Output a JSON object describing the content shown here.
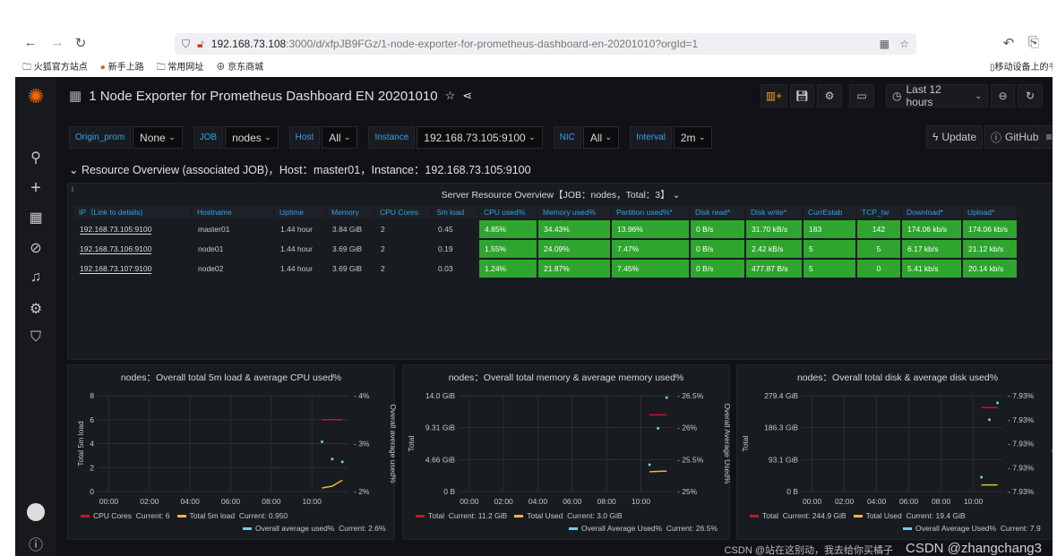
{
  "browser": {
    "url_host": "192.168.73.108",
    "url_rest": ":3000/d/xfpJB9FGz/1-node-exporter-for-prometheus-dashboard-en-20201010?orgId=1",
    "bookmarks": [
      "火狐官方站点",
      "新手上路",
      "常用网址",
      "京东商城"
    ],
    "mobile_bookmarks": "移动设备上的书签"
  },
  "header": {
    "title": "1 Node Exporter for Prometheus Dashboard EN 20201010",
    "time_range": "Last 12 hours"
  },
  "variables": [
    {
      "label": "Origin_prom",
      "value": "None"
    },
    {
      "label": "JOB",
      "value": "nodes"
    },
    {
      "label": "Host",
      "value": "All"
    },
    {
      "label": "Instance",
      "value": "192.168.73.105:9100"
    },
    {
      "label": "NIC",
      "value": "All"
    },
    {
      "label": "Interval",
      "value": "2m"
    }
  ],
  "links": {
    "update": "Update",
    "github": "GitHub"
  },
  "row_title": "Resource Overview (associated JOB)，Host：master01，Instance：192.168.73.105:9100",
  "table": {
    "title": "Server Resource Overview【JOB：nodes，Total：3】",
    "columns": [
      "IP（Link to details)",
      "Hostname",
      "Uptime",
      "Memory",
      "CPU Cores",
      "5m load",
      "CPU used%",
      "Memory used%",
      "Partition used%*",
      "Disk read*",
      "Disk write*",
      "CurrEstab",
      "TCP_tw",
      "Download*",
      "Upload*"
    ],
    "rows": [
      [
        "192.168.73.105:9100",
        "master01",
        "1.44 hour",
        "3.84 GiB",
        "2",
        "0.45",
        "4.85%",
        "34.43%",
        "13.96%",
        "0 B/s",
        "31.70 kB/s",
        "183",
        "142",
        "174.06 kb/s",
        "174.06 kb/s"
      ],
      [
        "192.168.73.106:9100",
        "node01",
        "1.44 hour",
        "3.69 GiB",
        "2",
        "0.19",
        "1.55%",
        "24.09%",
        "7.47%",
        "0 B/s",
        "2.42 kB/s",
        "5",
        "5",
        "6.17 kb/s",
        "21.12 kb/s"
      ],
      [
        "192.168.73.107:9100",
        "node02",
        "1.44 hour",
        "3.69 GiB",
        "2",
        "0.03",
        "1.24%",
        "21.87%",
        "7.45%",
        "0 B/s",
        "477.87 B/s",
        "5",
        "0",
        "5.41 kb/s",
        "20.14 kb/s"
      ]
    ],
    "status_color": "#2fa52f"
  },
  "chart_data": [
    {
      "type": "line",
      "title": "nodes：Overall total 5m load & average CPU used%",
      "xticks": [
        "00:00",
        "02:00",
        "04:00",
        "06:00",
        "08:00",
        "10:00"
      ],
      "xlim_hours": [
        -0.2,
        11.8
      ],
      "ylabel": "Total 5m load",
      "ylim": [
        0,
        8
      ],
      "yticks": [
        "0",
        "2",
        "4",
        "6",
        "8"
      ],
      "ylabel_right": "Overall average used%",
      "ylim_right": [
        2,
        4
      ],
      "yticks_right": [
        "2%",
        "3%",
        "4%"
      ],
      "series": [
        {
          "name": "CPU Cores",
          "current": "Current: 6",
          "color": "#c4162a",
          "axis": "left",
          "mode": "line",
          "x": [
            10.5,
            11.5
          ],
          "y": [
            6,
            6
          ]
        },
        {
          "name": "Total 5m load",
          "current": "Current: 0.950",
          "color": "#eab839",
          "axis": "left",
          "mode": "line",
          "x": [
            10.5,
            11,
            11.5
          ],
          "y": [
            0.3,
            0.45,
            0.95
          ]
        },
        {
          "name": "Overall average used%",
          "current": "Current: 2.6%",
          "color": "#6ed0e0",
          "axis": "right",
          "mode": "points",
          "x": [
            10.5,
            11,
            11.5
          ],
          "y": [
            3.04,
            2.68,
            2.62
          ]
        }
      ]
    },
    {
      "type": "line",
      "title": "nodes：Overall total memory & average memory used%",
      "xticks": [
        "00:00",
        "02:00",
        "04:00",
        "06:00",
        "08:00",
        "10:00"
      ],
      "xlim_hours": [
        -0.2,
        11.8
      ],
      "ylabel": "Total",
      "ylim": [
        0,
        14
      ],
      "yticks": [
        "0 B",
        "4.66 GiB",
        "9.31 GiB",
        "14.0 GiB"
      ],
      "ylabel_right": "Overall Average Used%",
      "ylim_right": [
        25,
        26.5
      ],
      "yticks_right": [
        "25%",
        "25.5%",
        "26%",
        "26.5%"
      ],
      "series": [
        {
          "name": "Total",
          "current": "Current: 11.2 GiB",
          "color": "#c4162a",
          "axis": "left",
          "mode": "line",
          "x": [
            10.5,
            11.5
          ],
          "y": [
            11.2,
            11.2
          ]
        },
        {
          "name": "Total Used",
          "current": "Current: 3.0 GiB",
          "color": "#eab839",
          "axis": "left",
          "mode": "line",
          "x": [
            10.5,
            11.5
          ],
          "y": [
            2.9,
            3.0
          ]
        },
        {
          "name": "Overall Average Used%",
          "current": "Current: 26.5%",
          "color": "#6ed0e0",
          "axis": "right",
          "mode": "points",
          "x": [
            10.5,
            11,
            11.5
          ],
          "y": [
            25.42,
            25.99,
            26.47
          ]
        }
      ]
    },
    {
      "type": "line",
      "title": "nodes：Overall total disk & average disk used%",
      "xticks": [
        "00:00",
        "02:00",
        "04:00",
        "06:00",
        "08:00",
        "10:00"
      ],
      "xlim_hours": [
        -0.2,
        11.8
      ],
      "ylabel": "Total",
      "ylim": [
        0,
        279.4
      ],
      "yticks": [
        "0 B",
        "93.1 GiB",
        "186.3 GiB",
        "279.4 GiB"
      ],
      "ylabel_right": "Overall Average Used%",
      "ylim_right": [
        7.93,
        7.9304
      ],
      "yticks_right": [
        "7.93%",
        "7.93%",
        "7.93%",
        "7.93%",
        "7.93%"
      ],
      "series": [
        {
          "name": "Total",
          "current": "Current: 244.9 GiB",
          "color": "#c4162a",
          "axis": "left",
          "mode": "line",
          "x": [
            10.5,
            11.5
          ],
          "y": [
            244.9,
            244.9
          ]
        },
        {
          "name": "Total Used",
          "current": "Current: 19.4 GiB",
          "color": "#eab839",
          "axis": "left",
          "mode": "line",
          "x": [
            10.5,
            11.5
          ],
          "y": [
            19.4,
            19.4
          ]
        },
        {
          "name": "Overall Average Used%",
          "current": "Current: 7.9",
          "color": "#6ed0e0",
          "axis": "right",
          "mode": "points",
          "x": [
            10.5,
            11,
            11.5
          ],
          "y": [
            7.93006,
            7.9303,
            7.93037
          ]
        }
      ]
    }
  ],
  "watermark": "CSDN @zhangchang3",
  "watermark2": "CSDN @站在这别动，我去给你买橘子"
}
